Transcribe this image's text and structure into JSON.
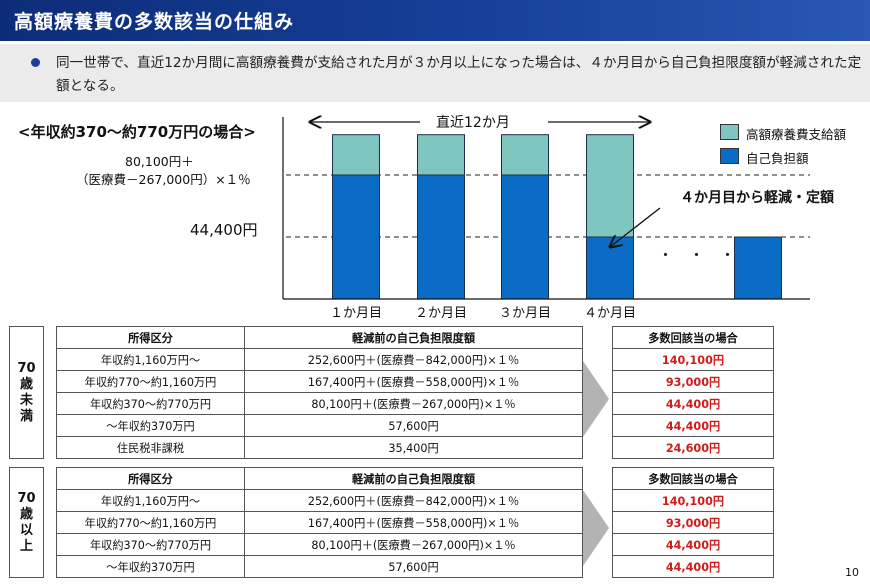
{
  "header": {
    "title": "高額療養費の多数該当の仕組み",
    "bullet": "同一世帯で、直近12か月間に高額療養費が支給された月が３か月以上になった場合は、４か月目から自己負担限度額が軽減された定額となる。"
  },
  "chart_labels": {
    "case_title": "<年収約370～約770万円の場合>",
    "formula_line1": "80,100円＋",
    "formula_line2": "（医療費－267,000円）×１％",
    "marker_value": "44,400円",
    "period": "直近12か月",
    "callout": "４か月目から軽減・定額",
    "ellipsis": "・・・"
  },
  "chart_data": {
    "type": "bar",
    "stacked": true,
    "categories": [
      "１か月目",
      "２か月目",
      "３か月目",
      "４か月目",
      ""
    ],
    "series": [
      {
        "name": "自己負担額",
        "color": "#0a6cc4",
        "values": [
          2.0,
          2.0,
          2.0,
          1.0,
          1.0
        ]
      },
      {
        "name": "高額療養費支給額",
        "color": "#7fc6c0",
        "values": [
          0.65,
          0.65,
          0.65,
          1.65,
          0
        ]
      }
    ],
    "reference_lines": [
      2.0,
      1.0
    ],
    "ylim": [
      0,
      3
    ],
    "legend": "top-right"
  },
  "tables": [
    {
      "age_group": "70歳未満",
      "header": [
        "所得区分",
        "軽減前の自己負担限度額",
        "多数回該当の場合"
      ],
      "rows": [
        [
          "年収約1,160万円～",
          "252,600円＋(医療費－842,000円)×１％",
          "140,100円"
        ],
        [
          "年収約770～約1,160万円",
          "167,400円＋(医療費－558,000円)×１％",
          "93,000円"
        ],
        [
          "年収約370～約770万円",
          "80,100円＋(医療費－267,000円)×１％",
          "44,400円"
        ],
        [
          "～年収約370万円",
          "57,600円",
          "44,400円"
        ],
        [
          "住民税非課税",
          "35,400円",
          "24,600円"
        ]
      ]
    },
    {
      "age_group": "70歳以上",
      "header": [
        "所得区分",
        "軽減前の自己負担限度額",
        "多数回該当の場合"
      ],
      "rows": [
        [
          "年収約1,160万円～",
          "252,600円＋(医療費－842,000円)×１％",
          "140,100円"
        ],
        [
          "年収約770～約1,160万円",
          "167,400円＋(医療費－558,000円)×１％",
          "93,000円"
        ],
        [
          "年収約370～約770万円",
          "80,100円＋(医療費－267,000円)×１％",
          "44,400円"
        ],
        [
          "～年収約370万円",
          "57,600円",
          "44,400円"
        ]
      ]
    }
  ],
  "page_number": "10"
}
